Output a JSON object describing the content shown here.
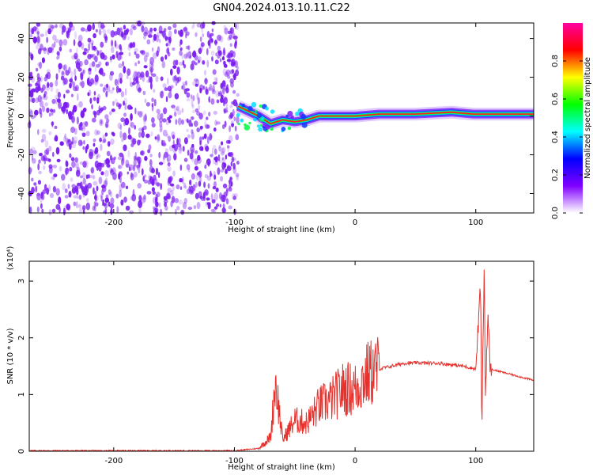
{
  "title": "GN04.2024.013.10.11.C22",
  "colors": {
    "snr_line": "#e8312c",
    "scatter_base": "#7a1cf0",
    "axis": "#000000"
  },
  "chart_data": [
    {
      "type": "heatmap",
      "xlabel": "Height of straight line (km)",
      "ylabel": "Frequency (Hz)",
      "xlim": [
        -270,
        148
      ],
      "ylim": [
        -50,
        48
      ],
      "xticks": [
        -200,
        -100,
        0,
        100
      ],
      "yticks": [
        -40,
        -20,
        0,
        20,
        40
      ],
      "colorbar": {
        "label": "Normalized spectral amplitude",
        "range": [
          0.0,
          1.0
        ],
        "ticks": [
          "0.0",
          "0.2",
          "0.4",
          "0.6",
          "0.8"
        ],
        "colormap": [
          "#ffffff",
          "#8000ff",
          "#0000ff",
          "#00ffff",
          "#00ff00",
          "#ffff00",
          "#ff0000",
          "#ff00a0"
        ]
      },
      "features": {
        "noise_region_x": [
          -270,
          -97
        ],
        "signal_track": [
          {
            "x": -97,
            "y": 5
          },
          {
            "x": -90,
            "y": 3
          },
          {
            "x": -80,
            "y": 0
          },
          {
            "x": -70,
            "y": -4
          },
          {
            "x": -60,
            "y": -2
          },
          {
            "x": -50,
            "y": -3
          },
          {
            "x": -40,
            "y": -2
          },
          {
            "x": -30,
            "y": 0
          },
          {
            "x": -15,
            "y": 0
          },
          {
            "x": 0,
            "y": 0
          },
          {
            "x": 20,
            "y": 1
          },
          {
            "x": 50,
            "y": 1
          },
          {
            "x": 80,
            "y": 2
          },
          {
            "x": 98,
            "y": 1
          },
          {
            "x": 120,
            "y": 1
          },
          {
            "x": 148,
            "y": 1
          }
        ]
      }
    },
    {
      "type": "line",
      "xlabel": "Height of straight line (km)",
      "ylabel": "SNR (10 * v/v)",
      "scale_label": "(x10⁴)",
      "xlim": [
        -270,
        148
      ],
      "ylim": [
        0,
        3.35
      ],
      "xticks": [
        -200,
        -100,
        0,
        100
      ],
      "yticks": [
        0,
        1,
        2,
        3
      ],
      "series": [
        {
          "values": [
            [
              -270,
              0.01
            ],
            [
              -200,
              0.01
            ],
            [
              -150,
              0.01
            ],
            [
              -100,
              0.01
            ],
            [
              -80,
              0.05
            ],
            [
              -70,
              0.25
            ],
            [
              -66,
              1.25
            ],
            [
              -60,
              0.2
            ],
            [
              -50,
              0.55
            ],
            [
              -40,
              0.5
            ],
            [
              -30,
              0.8
            ],
            [
              -20,
              0.9
            ],
            [
              -10,
              1.1
            ],
            [
              0,
              1.1
            ],
            [
              10,
              1.35
            ],
            [
              20,
              1.45
            ],
            [
              30,
              1.5
            ],
            [
              40,
              1.55
            ],
            [
              50,
              1.56
            ],
            [
              70,
              1.55
            ],
            [
              90,
              1.5
            ],
            [
              100,
              1.45
            ],
            [
              104,
              2.95
            ],
            [
              105,
              0.4
            ],
            [
              107,
              3.3
            ],
            [
              108,
              1.0
            ],
            [
              110,
              2.4
            ],
            [
              112,
              1.45
            ],
            [
              130,
              1.35
            ],
            [
              148,
              1.25
            ]
          ]
        }
      ]
    }
  ]
}
